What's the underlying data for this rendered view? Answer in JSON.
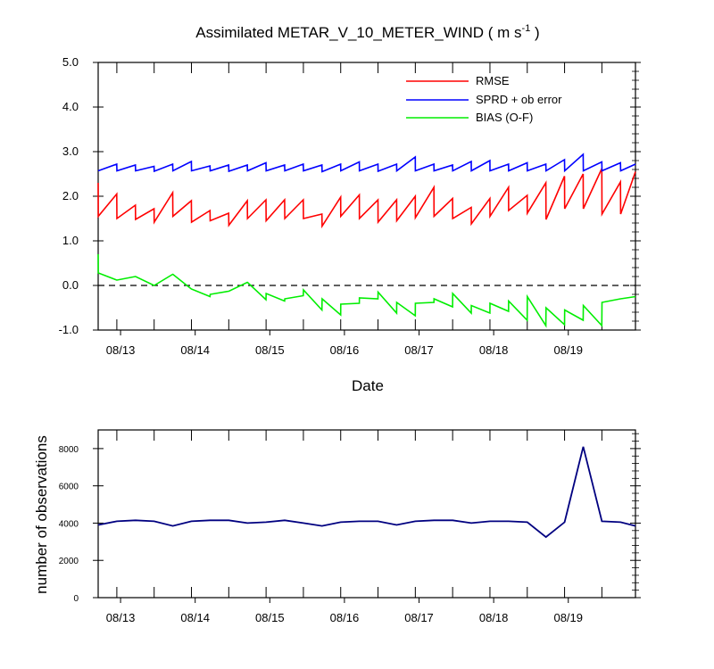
{
  "chart_data": [
    {
      "type": "line",
      "title_main": "Assimilated METAR_V_10_METER_WIND ( m s",
      "title_sup": "-1",
      "title_end": " )",
      "xlabel": "Date",
      "ylabel": "",
      "xlim": [
        0,
        72
      ],
      "ylim": [
        -1.0,
        5.0
      ],
      "yticks": [
        "-1.0",
        "0.0",
        "1.0",
        "2.0",
        "3.0",
        "4.0",
        "5.0"
      ],
      "xtick_labels": [
        "08/13",
        "08/14",
        "08/15",
        "08/16",
        "08/17",
        "08/18",
        "08/19"
      ],
      "xtick_hours": [
        3,
        13,
        23,
        33,
        43,
        53,
        63
      ],
      "zero_line": "dashed",
      "legend": {
        "position": "top-right"
      },
      "series": [
        {
          "name": "RMSE",
          "color": "#ff0000",
          "x": [
            0,
            0.01,
            2.49,
            2.51,
            4.99,
            5.01,
            7.49,
            7.51,
            9.99,
            10.01,
            12.49,
            12.51,
            14.99,
            15.01,
            17.49,
            17.51,
            19.99,
            20.01,
            22.49,
            22.51,
            24.99,
            25.01,
            27.49,
            27.51,
            29.99,
            30.01,
            32.49,
            32.51,
            34.99,
            35.01,
            37.49,
            37.51,
            39.99,
            40.01,
            42.49,
            42.51,
            44.99,
            45.01,
            47.49,
            47.51,
            49.99,
            50.01,
            52.49,
            52.51,
            54.99,
            55.01,
            57.49,
            57.51,
            59.99,
            60.01,
            62.49,
            62.51,
            64.99,
            65.01,
            67.49,
            67.51,
            69.99,
            70.01,
            72
          ],
          "y": [
            2.3,
            1.55,
            2.05,
            1.5,
            1.8,
            1.48,
            1.72,
            1.42,
            2.08,
            1.55,
            1.9,
            1.42,
            1.68,
            1.45,
            1.62,
            1.35,
            1.9,
            1.5,
            1.92,
            1.45,
            1.92,
            1.5,
            1.92,
            1.5,
            1.6,
            1.33,
            1.98,
            1.55,
            2.03,
            1.5,
            1.92,
            1.42,
            1.92,
            1.45,
            2.0,
            1.52,
            2.2,
            1.55,
            1.95,
            1.5,
            1.75,
            1.38,
            1.95,
            1.55,
            2.2,
            1.68,
            2.02,
            1.62,
            2.3,
            1.48,
            2.45,
            1.72,
            2.5,
            1.72,
            2.62,
            1.6,
            2.32,
            1.6,
            2.55
          ]
        },
        {
          "name": "SPRD + ob error",
          "color": "#0000ff",
          "x": [
            0,
            2.49,
            2.51,
            4.99,
            5.01,
            7.49,
            7.51,
            9.99,
            10.01,
            12.49,
            12.51,
            14.99,
            15.01,
            17.49,
            17.51,
            19.99,
            20.01,
            22.49,
            22.51,
            24.99,
            25.01,
            27.49,
            27.51,
            29.99,
            30.01,
            32.49,
            32.51,
            34.99,
            35.01,
            37.49,
            37.51,
            39.99,
            40.01,
            42.49,
            42.51,
            44.99,
            45.01,
            47.49,
            47.51,
            49.99,
            50.01,
            52.49,
            52.51,
            54.99,
            55.01,
            57.49,
            57.51,
            59.99,
            60.01,
            62.49,
            62.51,
            64.99,
            65.01,
            67.49,
            67.51,
            69.99,
            70.01,
            72
          ],
          "y": [
            2.57,
            2.72,
            2.57,
            2.7,
            2.57,
            2.67,
            2.56,
            2.72,
            2.57,
            2.78,
            2.57,
            2.68,
            2.57,
            2.7,
            2.56,
            2.7,
            2.57,
            2.75,
            2.57,
            2.7,
            2.57,
            2.72,
            2.57,
            2.7,
            2.55,
            2.72,
            2.57,
            2.77,
            2.57,
            2.72,
            2.56,
            2.72,
            2.57,
            2.88,
            2.57,
            2.72,
            2.57,
            2.7,
            2.57,
            2.78,
            2.57,
            2.8,
            2.57,
            2.72,
            2.57,
            2.75,
            2.57,
            2.72,
            2.57,
            2.82,
            2.57,
            2.94,
            2.57,
            2.77,
            2.57,
            2.75,
            2.57,
            2.72
          ]
        },
        {
          "name": "BIAS (O-F)",
          "color": "#00ee00",
          "x": [
            0,
            0.01,
            2.49,
            2.51,
            4.99,
            5.01,
            7.49,
            7.51,
            9.99,
            10.01,
            12.49,
            12.51,
            14.99,
            15.01,
            17.49,
            17.51,
            19.99,
            20.01,
            22.49,
            22.51,
            24.99,
            25.01,
            27.49,
            27.51,
            29.99,
            30.01,
            32.49,
            32.51,
            34.99,
            35.01,
            37.49,
            37.51,
            39.99,
            40.01,
            42.49,
            42.51,
            44.99,
            45.01,
            47.49,
            47.51,
            49.99,
            50.01,
            52.49,
            52.51,
            54.99,
            55.01,
            57.49,
            57.51,
            59.99,
            60.01,
            62.49,
            62.51,
            64.99,
            65.01,
            67.49,
            67.51,
            69.99,
            70.01,
            72
          ],
          "y": [
            0.7,
            0.28,
            0.12,
            0.12,
            0.2,
            0.2,
            0.0,
            0.0,
            0.25,
            0.25,
            -0.08,
            -0.08,
            -0.25,
            -0.2,
            -0.13,
            -0.13,
            0.07,
            0.07,
            -0.32,
            -0.18,
            -0.35,
            -0.3,
            -0.23,
            -0.1,
            -0.55,
            -0.3,
            -0.66,
            -0.42,
            -0.4,
            -0.28,
            -0.3,
            -0.15,
            -0.62,
            -0.38,
            -0.68,
            -0.4,
            -0.38,
            -0.3,
            -0.48,
            -0.18,
            -0.62,
            -0.45,
            -0.62,
            -0.4,
            -0.58,
            -0.35,
            -0.78,
            -0.25,
            -0.9,
            -0.5,
            -0.88,
            -0.55,
            -0.78,
            -0.45,
            -0.9,
            -0.38,
            -0.3,
            -0.3,
            -0.25
          ]
        }
      ]
    },
    {
      "type": "line",
      "title": "",
      "xlabel": "",
      "ylabel": "number of observations",
      "xlim": [
        0,
        72
      ],
      "ylim": [
        0,
        9000
      ],
      "yticks": [
        "0",
        "2000",
        "4000",
        "6000",
        "8000"
      ],
      "ytick_values": [
        0,
        2000,
        4000,
        6000,
        8000
      ],
      "xtick_labels": [
        "08/13",
        "08/14",
        "08/15",
        "08/16",
        "08/17",
        "08/18",
        "08/19"
      ],
      "xtick_hours": [
        3,
        13,
        23,
        33,
        43,
        53,
        63
      ],
      "series": [
        {
          "color": "#000080",
          "x": [
            0,
            2.5,
            5,
            7.5,
            10,
            12.5,
            15,
            17.5,
            20,
            22.5,
            25,
            27.5,
            30,
            32.5,
            35,
            37.5,
            40,
            42.5,
            45,
            47.5,
            50,
            52.5,
            55,
            57.5,
            60,
            62.5,
            65,
            67.5,
            70,
            72
          ],
          "y": [
            3900,
            4100,
            4150,
            4100,
            3850,
            4100,
            4150,
            4150,
            4000,
            4050,
            4150,
            4000,
            3850,
            4050,
            4100,
            4100,
            3900,
            4100,
            4150,
            4150,
            4000,
            4100,
            4100,
            4050,
            3250,
            4050,
            8100,
            4100,
            4050,
            3850
          ]
        }
      ]
    }
  ]
}
